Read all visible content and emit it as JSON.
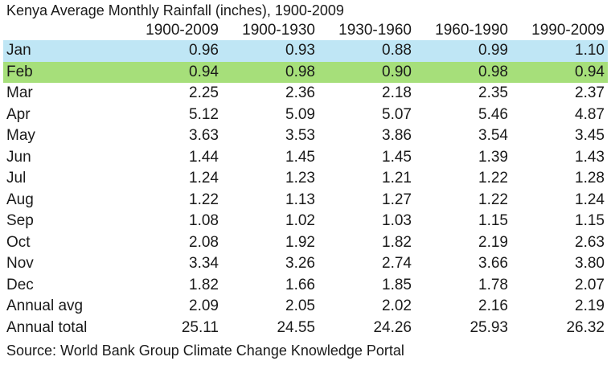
{
  "chart_data": {
    "type": "table",
    "title": "Kenya Average Monthly Rainfall (inches), 1900-2009",
    "columns": [
      "1900-2009",
      "1900-1930",
      "1930-1960",
      "1960-1990",
      "1990-2009"
    ],
    "rows": [
      {
        "label": "Jan",
        "values": [
          "0.96",
          "0.93",
          "0.88",
          "0.99",
          "1.10"
        ],
        "highlight": "#bfe6f5"
      },
      {
        "label": "Feb",
        "values": [
          "0.94",
          "0.98",
          "0.90",
          "0.98",
          "0.94"
        ],
        "highlight": "#a6df7a"
      },
      {
        "label": "Mar",
        "values": [
          "2.25",
          "2.36",
          "2.18",
          "2.35",
          "2.37"
        ]
      },
      {
        "label": "Apr",
        "values": [
          "5.12",
          "5.09",
          "5.07",
          "5.46",
          "4.87"
        ]
      },
      {
        "label": "May",
        "values": [
          "3.63",
          "3.53",
          "3.86",
          "3.54",
          "3.45"
        ]
      },
      {
        "label": "Jun",
        "values": [
          "1.44",
          "1.45",
          "1.45",
          "1.39",
          "1.43"
        ]
      },
      {
        "label": "Jul",
        "values": [
          "1.24",
          "1.23",
          "1.21",
          "1.22",
          "1.28"
        ]
      },
      {
        "label": "Aug",
        "values": [
          "1.22",
          "1.13",
          "1.27",
          "1.22",
          "1.24"
        ]
      },
      {
        "label": "Sep",
        "values": [
          "1.08",
          "1.02",
          "1.03",
          "1.15",
          "1.15"
        ]
      },
      {
        "label": "Oct",
        "values": [
          "2.08",
          "1.92",
          "1.82",
          "2.19",
          "2.63"
        ]
      },
      {
        "label": "Nov",
        "values": [
          "3.34",
          "3.26",
          "2.74",
          "3.66",
          "3.80"
        ]
      },
      {
        "label": "Dec",
        "values": [
          "1.82",
          "1.66",
          "1.85",
          "1.78",
          "2.07"
        ]
      },
      {
        "label": "Annual avg",
        "values": [
          "2.09",
          "2.05",
          "2.02",
          "2.16",
          "2.19"
        ]
      },
      {
        "label": "Annual total",
        "values": [
          "25.11",
          "24.55",
          "24.26",
          "25.93",
          "26.32"
        ]
      }
    ],
    "source": "Source: World Bank Group Climate Change Knowledge Portal"
  }
}
